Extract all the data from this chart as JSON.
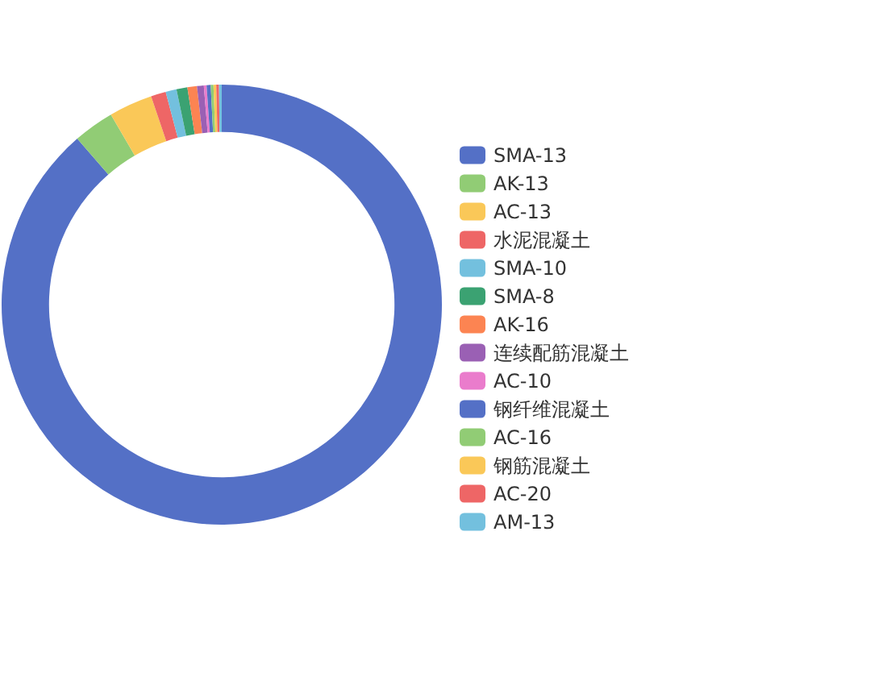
{
  "chart_data": {
    "type": "donut",
    "categories": [
      "SMA-13",
      "AK-13",
      "AC-13",
      "水泥混凝土",
      "SMA-10",
      "SMA-8",
      "AK-16",
      "连续配筋混凝土",
      "AC-10",
      "钢纤维混凝土",
      "AC-16",
      "钢筋混凝土",
      "AC-20",
      "AM-13"
    ],
    "values": [
      88.6,
      3.0,
      3.2,
      1.1,
      0.8,
      0.8,
      0.7,
      0.5,
      0.2,
      0.3,
      0.2,
      0.2,
      0.2,
      0.2
    ],
    "colors": [
      "#5470c6",
      "#91cc75",
      "#fac858",
      "#ee6666",
      "#73c0de",
      "#3ba272",
      "#fc8452",
      "#9a60b4",
      "#ea7ccc",
      "#5470c6",
      "#91cc75",
      "#fac858",
      "#ee6666",
      "#73c0de"
    ],
    "legend": "right"
  }
}
